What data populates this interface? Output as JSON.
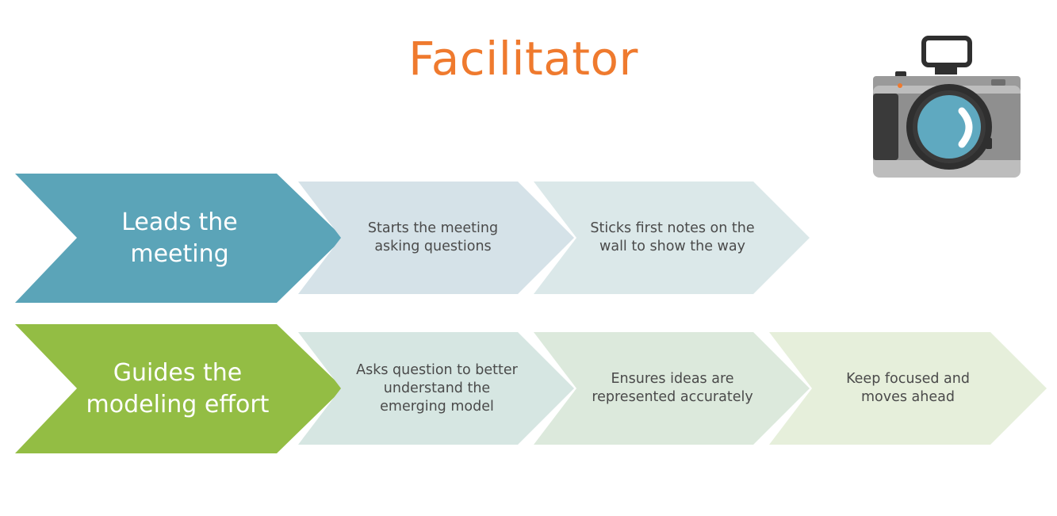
{
  "title": "Facilitator",
  "colors": {
    "title": "#ef7a2e",
    "row1_head": "#5ba4b8",
    "row2_head": "#93bd44",
    "row1_step1": "#d5e2e8",
    "row1_step2": "#dbe8e9",
    "row2_step1": "#d6e6e2",
    "row2_step2": "#dce9dc",
    "row2_step3": "#e6efdb"
  },
  "icon": "camera-icon",
  "rows": [
    {
      "head": "Leads the\nmeeting",
      "steps": [
        "Starts the meeting\nasking questions",
        "Sticks first notes on the\nwall to show the way"
      ]
    },
    {
      "head": "Guides the\nmodeling effort",
      "steps": [
        "Asks question to better\nunderstand the\nemerging model",
        "Ensures ideas are\nrepresented accurately",
        "Keep focused and\nmoves ahead"
      ]
    }
  ]
}
